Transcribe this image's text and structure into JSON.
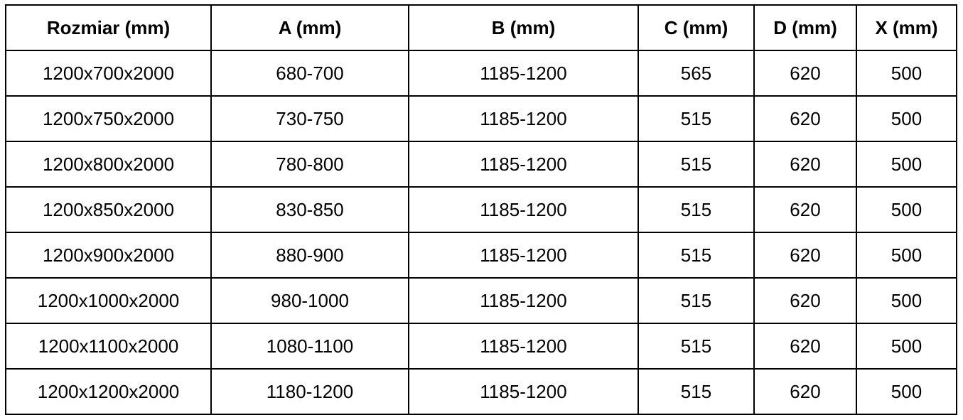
{
  "table": {
    "headers": [
      "Rozmiar (mm)",
      "A (mm)",
      "B (mm)",
      "C (mm)",
      "D (mm)",
      "X (mm)"
    ],
    "rows": [
      [
        "1200x700x2000",
        "680-700",
        "1185-1200",
        "565",
        "620",
        "500"
      ],
      [
        "1200x750x2000",
        "730-750",
        "1185-1200",
        "515",
        "620",
        "500"
      ],
      [
        "1200x800x2000",
        "780-800",
        "1185-1200",
        "515",
        "620",
        "500"
      ],
      [
        "1200x850x2000",
        "830-850",
        "1185-1200",
        "515",
        "620",
        "500"
      ],
      [
        "1200x900x2000",
        "880-900",
        "1185-1200",
        "515",
        "620",
        "500"
      ],
      [
        "1200x1000x2000",
        "980-1000",
        "1185-1200",
        "515",
        "620",
        "500"
      ],
      [
        "1200x1100x2000",
        "1080-1100",
        "1185-1200",
        "515",
        "620",
        "500"
      ],
      [
        "1200x1200x2000",
        "1180-1200",
        "1185-1200",
        "515",
        "620",
        "500"
      ]
    ]
  }
}
